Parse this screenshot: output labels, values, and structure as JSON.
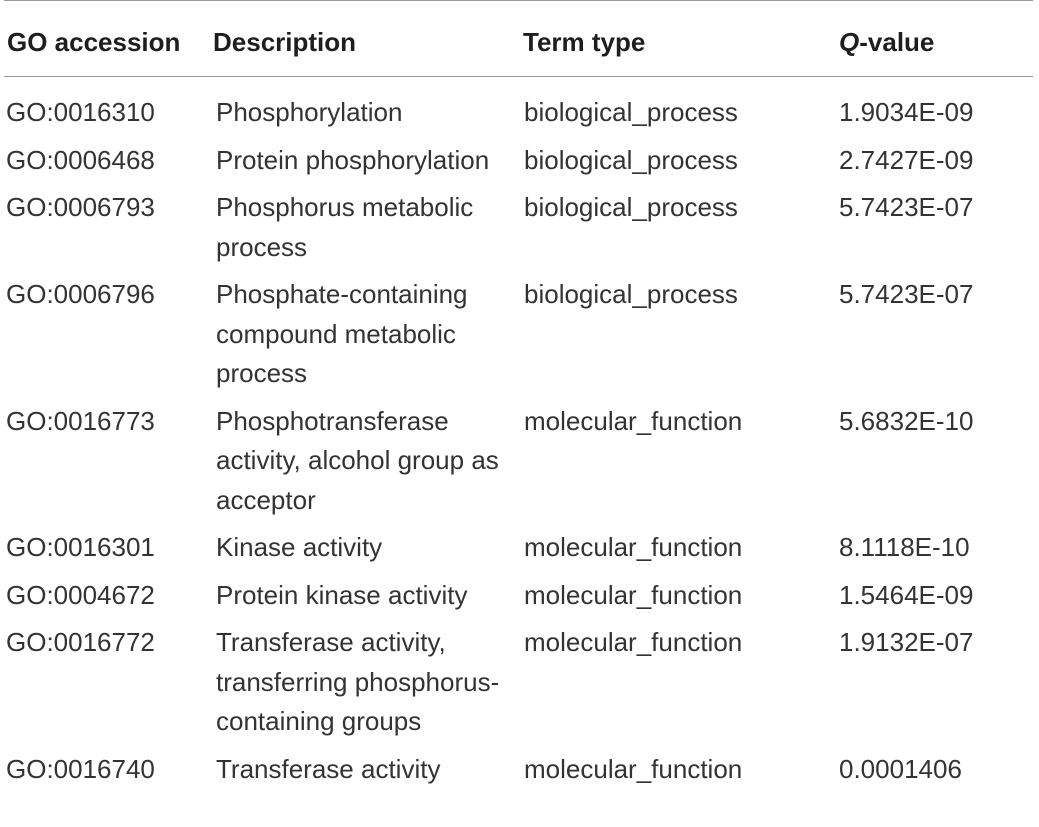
{
  "table": {
    "headers": {
      "accession": "GO accession",
      "description": "Description",
      "term_type": "Term type",
      "q_prefix": "Q",
      "q_suffix": "-value"
    },
    "rows": [
      {
        "accession": "GO:0016310",
        "description": "Phosphorylation",
        "term_type": "biological_process",
        "q_value": "1.9034E-09"
      },
      {
        "accession": "GO:0006468",
        "description": "Protein phosphorylation",
        "term_type": "biological_process",
        "q_value": "2.7427E-09"
      },
      {
        "accession": "GO:0006793",
        "description": "Phosphorus metabolic process",
        "term_type": "biological_process",
        "q_value": "5.7423E-07"
      },
      {
        "accession": "GO:0006796",
        "description": "Phosphate-containing compound metabolic process",
        "term_type": "biological_process",
        "q_value": "5.7423E-07"
      },
      {
        "accession": "GO:0016773",
        "description": "Phosphotransferase activity, alcohol group as acceptor",
        "term_type": "molecular_function",
        "q_value": "5.6832E-10"
      },
      {
        "accession": "GO:0016301",
        "description": "Kinase activity",
        "term_type": "molecular_function",
        "q_value": "8.1118E-10"
      },
      {
        "accession": "GO:0004672",
        "description": "Protein kinase activity",
        "term_type": "molecular_function",
        "q_value": "1.5464E-09"
      },
      {
        "accession": "GO:0016772",
        "description": "Transferase activity, transferring phosphorus-containing groups",
        "term_type": "molecular_function",
        "q_value": "1.9132E-07"
      },
      {
        "accession": "GO:0016740",
        "description": "Transferase activity",
        "term_type": "molecular_function",
        "q_value": "0.0001406"
      }
    ]
  }
}
